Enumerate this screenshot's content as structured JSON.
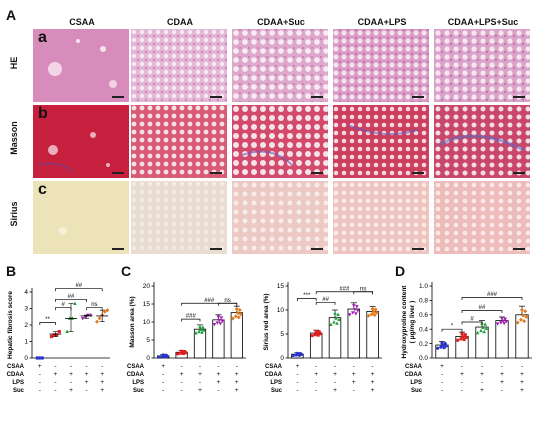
{
  "panel_A": {
    "label": "A",
    "columns": [
      "CSAA",
      "CDAA",
      "CDAA+Suc",
      "CDAA+LPS",
      "CDAA+LPS+Suc"
    ],
    "rows": [
      {
        "label": "HE",
        "sub": "a"
      },
      {
        "label": "Masson",
        "sub": "b"
      },
      {
        "label": "Sirius",
        "sub": "c"
      }
    ]
  },
  "group_table": {
    "row_labels": [
      "CSAA",
      "CDAA",
      "LPS",
      "Suc"
    ],
    "cols": [
      [
        "+",
        "-",
        "-",
        "-"
      ],
      [
        "-",
        "+",
        "-",
        "-"
      ],
      [
        "-",
        "+",
        "-",
        "+"
      ],
      [
        "-",
        "+",
        "+",
        "-"
      ],
      [
        "-",
        "+",
        "+",
        "+"
      ]
    ]
  },
  "colors": {
    "groups": [
      "#2b35c9",
      "#e01f1f",
      "#1f9e3a",
      "#a11bb0",
      "#e07a1f"
    ]
  },
  "chart_data": [
    {
      "id": "B",
      "label": "B",
      "type": "scatter",
      "ylabel": "Hepatic fibrosis score",
      "ylim": [
        0,
        4
      ],
      "yticks": [
        0,
        1,
        2,
        3,
        4
      ],
      "series": [
        {
          "values": [
            0,
            0,
            0
          ]
        },
        {
          "values": [
            1.3,
            1.4,
            1.4,
            1.6
          ],
          "mean": 1.45
        },
        {
          "values": [
            1.6,
            2.4,
            2.4,
            3.3
          ],
          "mean": 2.4
        },
        {
          "values": [
            2.4,
            2.5,
            2.6,
            2.6
          ],
          "mean": 2.55
        },
        {
          "values": [
            2.2,
            2.4,
            2.6,
            2.8,
            2.9
          ],
          "mean": 2.55
        }
      ],
      "brackets": [
        {
          "from": 0,
          "to": 1,
          "level": 2.15,
          "text": "**"
        },
        {
          "from": 1,
          "to": 2,
          "level": 3.05,
          "text": "#"
        },
        {
          "from": 1,
          "to": 3,
          "level": 3.55,
          "text": "##"
        },
        {
          "from": 1,
          "to": 4,
          "level": 4.2,
          "text": "##"
        },
        {
          "from": 3,
          "to": 4,
          "level": 3.05,
          "text": "ns"
        }
      ]
    },
    {
      "id": "C1",
      "label": "C",
      "type": "bar",
      "ylabel": "Masson area (%)",
      "ylim": [
        0,
        20
      ],
      "yticks": [
        0,
        5,
        10,
        15,
        20
      ],
      "values": [
        0.6,
        1.6,
        8.0,
        10.6,
        12.6
      ],
      "errors": [
        0.4,
        0.5,
        1.2,
        1.4,
        1.8
      ],
      "brackets": [
        {
          "from": 1,
          "to": 2,
          "level": 10.8,
          "text": "###"
        },
        {
          "from": 1,
          "to": 4,
          "level": 15.2,
          "text": "###"
        },
        {
          "from": 3,
          "to": 4,
          "level": 15.2,
          "text": "ns"
        }
      ]
    },
    {
      "id": "C2",
      "type": "bar",
      "ylabel": "Sirius red area (%)",
      "ylim": [
        0,
        15
      ],
      "yticks": [
        0,
        5,
        10,
        15
      ],
      "values": [
        0.8,
        5.2,
        8.4,
        10.2,
        9.7
      ],
      "errors": [
        0.3,
        0.6,
        1.6,
        1.3,
        1.0
      ],
      "brackets": [
        {
          "from": 0,
          "to": 1,
          "level": 12.4,
          "text": "***"
        },
        {
          "from": 1,
          "to": 2,
          "level": 11.6,
          "text": "##"
        },
        {
          "from": 1,
          "to": 4,
          "level": 13.8,
          "text": "###"
        },
        {
          "from": 3,
          "to": 4,
          "level": 13.8,
          "text": "ns"
        }
      ]
    },
    {
      "id": "D",
      "label": "D",
      "type": "bar",
      "ylabel": "Hydroxyproline content\n( μg/mg liver )",
      "ylim": [
        0,
        1.0
      ],
      "yticks": [
        0.0,
        0.2,
        0.4,
        0.6,
        0.8,
        1.0
      ],
      "values": [
        0.18,
        0.3,
        0.43,
        0.52,
        0.6
      ],
      "errors": [
        0.05,
        0.06,
        0.09,
        0.05,
        0.12
      ],
      "brackets": [
        {
          "from": 0,
          "to": 1,
          "level": 0.4,
          "text": "*"
        },
        {
          "from": 1,
          "to": 2,
          "level": 0.5,
          "text": "#"
        },
        {
          "from": 1,
          "to": 3,
          "level": 0.66,
          "text": "##"
        },
        {
          "from": 1,
          "to": 4,
          "level": 0.84,
          "text": "###"
        }
      ]
    }
  ]
}
